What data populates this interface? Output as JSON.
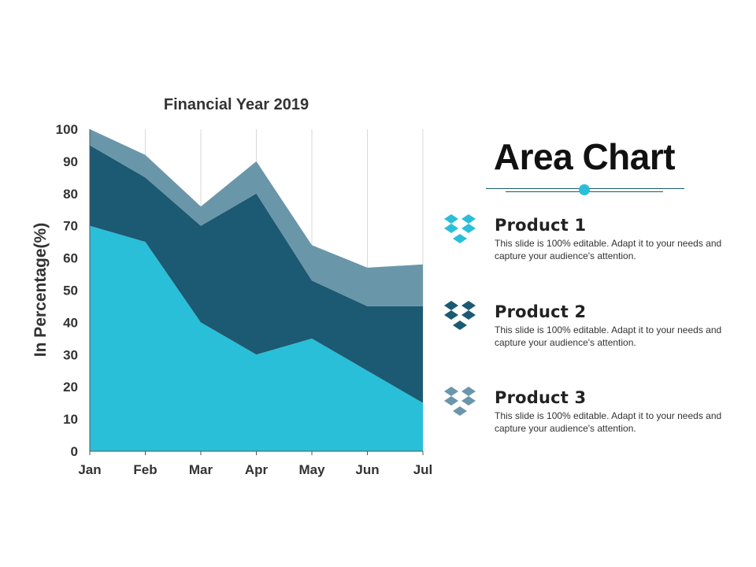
{
  "slide": {
    "title": "Area Chart",
    "accent_colors": {
      "divider_line": "#1b5a72",
      "divider_dot": "#29bfd9"
    },
    "products": [
      {
        "name": "Product 1",
        "description": "This slide is 100% editable. Adapt it to your needs and capture your audience's attention.",
        "icon": "dropbox-box-icon",
        "color": "#29bfd9"
      },
      {
        "name": "Product 2",
        "description": "This slide is 100% editable. Adapt it to your needs and capture your audience's attention.",
        "icon": "dropbox-box-icon",
        "color": "#1b5a72"
      },
      {
        "name": "Product 3",
        "description": "This slide is 100% editable. Adapt it to your needs and capture your audience's attention.",
        "icon": "dropbox-box-icon",
        "color": "#6a96aa"
      }
    ]
  },
  "chart_data": {
    "type": "area",
    "stacked": true,
    "title": "Financial Year 2019",
    "xlabel": "",
    "ylabel": "In Percentage(%)",
    "categories": [
      "Jan",
      "Feb",
      "Mar",
      "Apr",
      "May",
      "Jun",
      "Jul"
    ],
    "ylim": [
      0,
      100
    ],
    "yticks": [
      0,
      10,
      20,
      30,
      40,
      50,
      60,
      70,
      80,
      90,
      100
    ],
    "vertical_gridlines": true,
    "horizontal_gridlines": false,
    "legend": "none",
    "series": [
      {
        "values": [
          70,
          65,
          40,
          30,
          35,
          25,
          15
        ],
        "color": "#29bfd9"
      },
      {
        "values": [
          25,
          20,
          30,
          50,
          18,
          20,
          30
        ],
        "color": "#1b5a72"
      },
      {
        "values": [
          5,
          7,
          6,
          10,
          11,
          12,
          13
        ],
        "color": "#6a96aa"
      }
    ]
  }
}
